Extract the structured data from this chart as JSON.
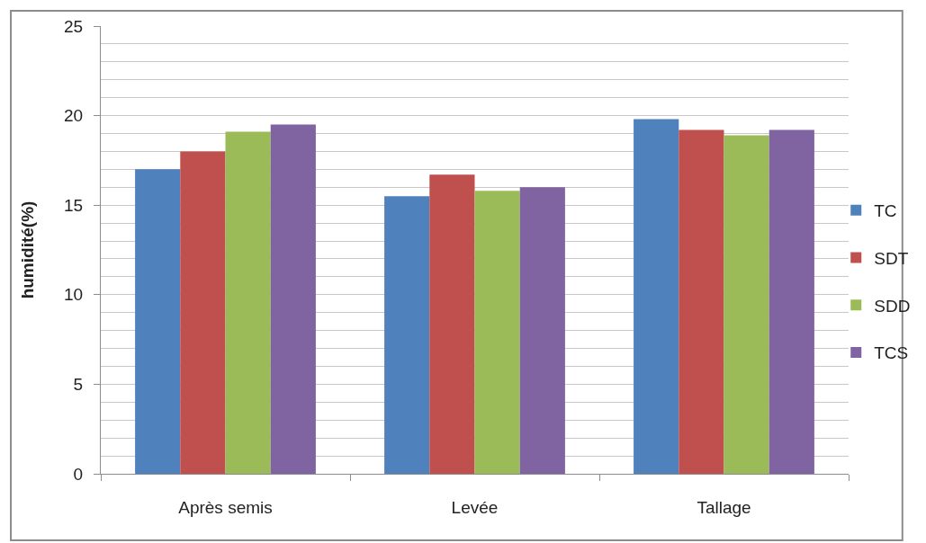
{
  "chart_data": {
    "type": "bar",
    "ylabel": "humidité(%)",
    "categories": [
      "Après semis",
      "Levée",
      "Tallage"
    ],
    "series": [
      {
        "name": "TC",
        "color": "#4f81bd",
        "values": [
          17.0,
          15.5,
          19.8
        ]
      },
      {
        "name": "SDT",
        "color": "#c0504d",
        "values": [
          18.0,
          16.7,
          19.2
        ]
      },
      {
        "name": "SDD",
        "color": "#9bbb59",
        "values": [
          19.1,
          15.8,
          18.9
        ]
      },
      {
        "name": "TCS",
        "color": "#8064a2",
        "values": [
          19.5,
          16.0,
          19.2
        ]
      }
    ],
    "ylim": [
      0,
      25
    ],
    "yticks": [
      0,
      {
        "value": 1,
        "label": null
      },
      {
        "value": 2,
        "label": null
      },
      {
        "value": 3,
        "label": null
      },
      {
        "value": 4,
        "label": null
      },
      5,
      {
        "value": 6,
        "label": null
      },
      {
        "value": 7,
        "label": null
      },
      {
        "value": 8,
        "label": null
      },
      {
        "value": 9,
        "label": null
      },
      10,
      {
        "value": 11,
        "label": null
      },
      {
        "value": 12,
        "label": null
      },
      {
        "value": 13,
        "label": null
      },
      {
        "value": 14,
        "label": null
      },
      15,
      {
        "value": 16,
        "label": null
      },
      {
        "value": 17,
        "label": null
      },
      {
        "value": 18,
        "label": null
      },
      {
        "value": 19,
        "label": null
      },
      20,
      {
        "value": 21,
        "label": null
      },
      {
        "value": 22,
        "label": null
      },
      {
        "value": 23,
        "label": null
      },
      {
        "value": 24,
        "label": null
      },
      25
    ],
    "grid": "y",
    "legend": "right"
  }
}
